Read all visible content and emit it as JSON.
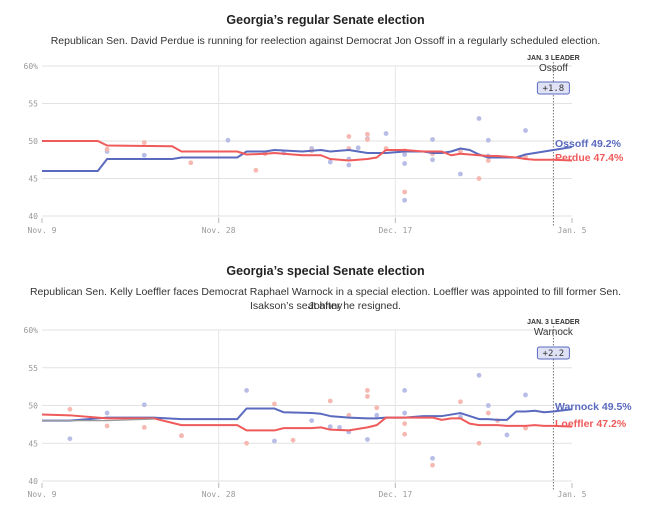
{
  "colors": {
    "dem": "#5a6abf",
    "rep": "#ef5a5a",
    "dem_dot": "#b8bde6",
    "rep_dot": "#f6b9b1"
  },
  "chart_data": [
    {
      "type": "line",
      "title": "Georgia’s regular Senate election",
      "subtitle": "Republican Sen. David Perdue is running for reelection against Democrat Jon Ossoff in a regularly scheduled election.",
      "y_ticks": [
        "60%",
        "55",
        "50",
        "45",
        "40"
      ],
      "ylim": [
        40,
        60
      ],
      "x_ticks": [
        "Nov. 9",
        "Nov. 28",
        "Dec. 17",
        "Jan. 5"
      ],
      "xlim": [
        0,
        57
      ],
      "leader_marker": {
        "heading": "JAN. 3 LEADER",
        "name": "Ossoff",
        "margin": "+1.8",
        "x": 55
      },
      "series": [
        {
          "name": "Ossoff",
          "party": "dem",
          "end_label": "Ossoff 49.2%",
          "x": [
            0,
            6,
            7,
            14,
            15,
            21,
            22,
            24,
            25,
            28,
            30,
            31,
            33,
            35,
            36,
            37,
            39,
            41,
            42,
            43,
            44,
            45,
            46,
            47,
            48,
            49,
            50,
            51,
            52,
            53,
            54,
            55,
            57
          ],
          "y": [
            46.0,
            46.0,
            47.6,
            47.6,
            47.8,
            47.8,
            48.6,
            48.6,
            48.8,
            48.6,
            48.8,
            48.6,
            48.8,
            48.4,
            48.4,
            48.4,
            48.6,
            48.6,
            48.4,
            48.4,
            48.6,
            49.0,
            48.8,
            48.2,
            47.8,
            47.8,
            47.8,
            47.8,
            48.2,
            48.4,
            48.6,
            48.8,
            49.2
          ]
        },
        {
          "name": "Perdue",
          "party": "rep",
          "end_label": "Perdue 47.4%",
          "x": [
            0,
            6,
            7,
            14,
            15,
            21,
            22,
            24,
            25,
            28,
            30,
            31,
            33,
            35,
            36,
            37,
            39,
            41,
            42,
            43,
            44,
            45,
            46,
            47,
            48,
            49,
            50,
            51,
            52,
            53,
            54,
            55,
            57
          ],
          "y": [
            50.0,
            50.0,
            49.4,
            49.3,
            48.6,
            48.6,
            48.2,
            48.3,
            48.4,
            48.1,
            48.1,
            47.6,
            47.4,
            47.6,
            47.8,
            48.8,
            48.8,
            48.6,
            48.6,
            48.6,
            48.1,
            48.3,
            48.2,
            48.1,
            48.0,
            48.0,
            47.9,
            47.8,
            47.6,
            47.5,
            47.5,
            47.5,
            47.4
          ]
        }
      ],
      "polls": {
        "dem": [
          [
            7,
            48.6
          ],
          [
            11,
            48.1
          ],
          [
            20,
            50.1
          ],
          [
            26,
            48.4
          ],
          [
            29,
            49.0
          ],
          [
            31,
            47.2
          ],
          [
            33,
            47.6
          ],
          [
            33,
            46.8
          ],
          [
            34,
            49.1
          ],
          [
            35,
            50.3
          ],
          [
            37,
            51.0
          ],
          [
            39,
            48.2
          ],
          [
            39,
            47.0
          ],
          [
            39,
            42.1
          ],
          [
            42,
            50.2
          ],
          [
            42,
            47.5
          ],
          [
            45,
            45.6
          ],
          [
            47,
            53.0
          ],
          [
            48,
            48.0
          ],
          [
            48,
            50.1
          ],
          [
            52,
            51.4
          ]
        ],
        "rep": [
          [
            7,
            48.9
          ],
          [
            11,
            49.8
          ],
          [
            16,
            47.1
          ],
          [
            23,
            46.1
          ],
          [
            24,
            48.3
          ],
          [
            29,
            48.7
          ],
          [
            33,
            50.6
          ],
          [
            33,
            49.0
          ],
          [
            35,
            50.2
          ],
          [
            35,
            50.9
          ],
          [
            37,
            49.0
          ],
          [
            39,
            48.7
          ],
          [
            39,
            43.2
          ],
          [
            42,
            48.3
          ],
          [
            45,
            48.6
          ],
          [
            47,
            45.0
          ],
          [
            48,
            47.4
          ],
          [
            52,
            47.8
          ]
        ]
      }
    },
    {
      "type": "line",
      "title": "Georgia’s special Senate election",
      "subtitle_lines": [
        "Republican Sen. Kelly Loeffler faces Democrat Raphael Warnock in a special election. Loeffler was appointed to fill former Sen. Johnny",
        "Isakson’s seat after he resigned."
      ],
      "y_ticks": [
        "60%",
        "55",
        "50",
        "45",
        "40"
      ],
      "ylim": [
        40,
        60
      ],
      "x_ticks": [
        "Nov. 9",
        "Nov. 28",
        "Dec. 17",
        "Jan. 5"
      ],
      "xlim": [
        0,
        57
      ],
      "leader_marker": {
        "heading": "JAN. 3 LEADER",
        "name": "Warnock",
        "margin": "+2.2",
        "x": 55
      },
      "series": [
        {
          "name": "Warnock",
          "party": "dem",
          "end_label": "Warnock 49.5%",
          "x": [
            0,
            3,
            7,
            12,
            15,
            21,
            22,
            25,
            26,
            29,
            30,
            31,
            33,
            35,
            36,
            37,
            39,
            41,
            42,
            43,
            44,
            45,
            46,
            47,
            48,
            49,
            50,
            51,
            52,
            53,
            54,
            55,
            57
          ],
          "y": [
            48.0,
            48.0,
            48.4,
            48.4,
            48.2,
            48.2,
            49.6,
            49.6,
            49.1,
            49.0,
            48.9,
            48.6,
            48.4,
            48.3,
            48.3,
            48.4,
            48.4,
            48.6,
            48.6,
            48.6,
            48.8,
            49.0,
            48.6,
            48.2,
            48.2,
            48.1,
            48.1,
            49.2,
            49.2,
            49.3,
            49.1,
            49.2,
            49.5
          ]
        },
        {
          "name": "Loeffler",
          "party": "rep",
          "end_label": "Loeffler 47.2%",
          "x": [
            0,
            3,
            7,
            12,
            15,
            21,
            22,
            25,
            26,
            29,
            30,
            31,
            33,
            35,
            36,
            37,
            39,
            41,
            42,
            43,
            44,
            45,
            46,
            47,
            48,
            49,
            50,
            51,
            52,
            53,
            54,
            55,
            57
          ],
          "y": [
            48.8,
            48.7,
            48.3,
            48.3,
            47.4,
            47.4,
            46.7,
            46.7,
            47.0,
            47.0,
            47.1,
            46.8,
            46.7,
            47.1,
            47.4,
            48.4,
            48.4,
            48.4,
            48.4,
            48.1,
            48.3,
            48.3,
            47.6,
            47.4,
            47.4,
            47.4,
            47.3,
            47.3,
            47.3,
            47.4,
            47.3,
            47.3,
            47.2
          ]
        },
        {
          "name": "",
          "party": "grey",
          "end_label": "",
          "x": [
            0,
            7,
            12
          ],
          "y": [
            48.0,
            48.0,
            48.2
          ]
        }
      ],
      "polls": {
        "dem": [
          [
            3,
            45.6
          ],
          [
            7,
            49.0
          ],
          [
            11,
            50.1
          ],
          [
            15,
            46.0
          ],
          [
            22,
            52.0
          ],
          [
            25,
            45.3
          ],
          [
            29,
            48.0
          ],
          [
            31,
            47.2
          ],
          [
            32,
            47.1
          ],
          [
            33,
            46.5
          ],
          [
            35,
            45.5
          ],
          [
            36,
            48.7
          ],
          [
            39,
            52.0
          ],
          [
            39,
            49.0
          ],
          [
            42,
            43.0
          ],
          [
            45,
            48.5
          ],
          [
            47,
            54.0
          ],
          [
            48,
            50.0
          ],
          [
            52,
            51.4
          ],
          [
            50,
            46.1
          ]
        ],
        "rep": [
          [
            3,
            49.5
          ],
          [
            7,
            47.3
          ],
          [
            11,
            47.1
          ],
          [
            15,
            46.0
          ],
          [
            22,
            45.0
          ],
          [
            25,
            50.2
          ],
          [
            27,
            45.4
          ],
          [
            31,
            50.6
          ],
          [
            33,
            48.7
          ],
          [
            35,
            51.2
          ],
          [
            35,
            52.0
          ],
          [
            36,
            49.7
          ],
          [
            39,
            46.2
          ],
          [
            39,
            47.6
          ],
          [
            42,
            42.1
          ],
          [
            45,
            50.5
          ],
          [
            47,
            45.0
          ],
          [
            48,
            49.0
          ],
          [
            49,
            48.0
          ],
          [
            52,
            47.0
          ]
        ]
      }
    }
  ]
}
